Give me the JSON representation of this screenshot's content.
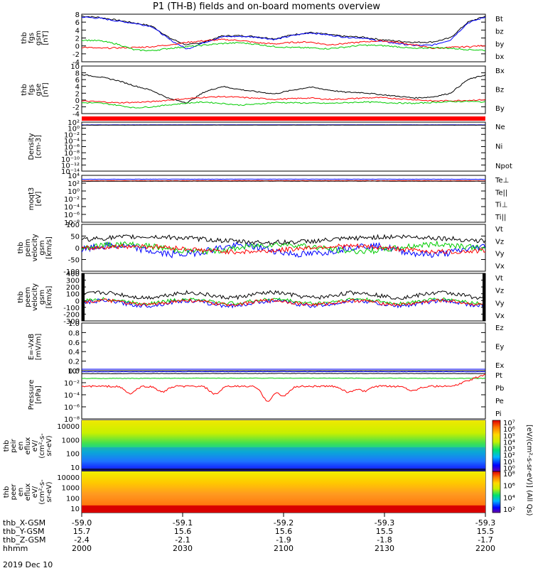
{
  "title": "P1 (TH-B) fields and on-board moments overview",
  "date_label": "2019 Dec 10",
  "colors": {
    "black": "#000000",
    "red": "#ff0000",
    "green": "#00cc00",
    "blue": "#0000ff"
  },
  "chart_data": [
    {
      "type": "line",
      "panel": "fgs_gsm",
      "ylabel_lines": [
        "thb",
        "fgs",
        "gsm",
        "[nT]"
      ],
      "yticks": [
        "8",
        "6",
        "4",
        "2",
        "0",
        "-2",
        "-4"
      ],
      "ylim": [
        -4,
        8
      ],
      "legend": [
        "Bt",
        "bz",
        "by",
        "bx"
      ],
      "series": [
        {
          "color": "black",
          "values": [
            7.5,
            7.2,
            6.5,
            5.8,
            5.0,
            2.0,
            0.2,
            1.0,
            2.5,
            2.6,
            2.3,
            1.8,
            2.8,
            3.4,
            2.9,
            2.4,
            2.2,
            1.6,
            1.2,
            0.9,
            1.0,
            2.0,
            6.0,
            7.5
          ]
        },
        {
          "color": "blue",
          "values": [
            7.3,
            7.0,
            6.3,
            5.7,
            4.9,
            1.6,
            -0.8,
            0.9,
            2.3,
            2.4,
            2.2,
            1.6,
            2.6,
            3.3,
            2.8,
            2.2,
            2.0,
            1.2,
            0.6,
            0.1,
            0.2,
            1.5,
            5.8,
            7.3
          ]
        },
        {
          "color": "red",
          "values": [
            -0.3,
            -0.6,
            -0.5,
            -0.4,
            -0.2,
            0.3,
            0.9,
            1.3,
            1.6,
            1.4,
            0.8,
            0.5,
            0.9,
            1.0,
            0.3,
            0.6,
            1.0,
            1.3,
            0.9,
            0.2,
            -0.6,
            -0.4,
            -0.2,
            0.1
          ]
        },
        {
          "color": "green",
          "values": [
            1.5,
            1.3,
            0.5,
            -1.0,
            -1.2,
            -0.6,
            -0.2,
            0.2,
            0.6,
            0.8,
            0.4,
            -0.2,
            -0.4,
            -0.5,
            -0.7,
            -0.3,
            0.2,
            0.1,
            -0.2,
            -0.7,
            -0.4,
            -0.6,
            -0.9,
            -1.1
          ]
        }
      ]
    },
    {
      "type": "line",
      "panel": "fgs_gse",
      "ylabel_lines": [
        "thb",
        "fgs",
        "gse",
        "[nT]"
      ],
      "yticks": [
        "10",
        "8",
        "6",
        "4",
        "2",
        "0",
        "-2",
        "-4"
      ],
      "ylim": [
        -4,
        10
      ],
      "legend": [
        "Bx",
        "Bz",
        "By"
      ],
      "series": [
        {
          "color": "black",
          "values": [
            7.5,
            6.8,
            5.8,
            4.2,
            2.8,
            0.4,
            -0.8,
            2.4,
            4.0,
            3.1,
            2.4,
            1.8,
            2.9,
            3.8,
            3.0,
            2.3,
            2.2,
            1.6,
            1.1,
            0.6,
            0.9,
            2.0,
            6.0,
            7.4
          ]
        },
        {
          "color": "red",
          "values": [
            -0.3,
            -0.5,
            -0.8,
            -0.7,
            -0.5,
            0.0,
            0.4,
            0.8,
            1.0,
            0.8,
            0.5,
            0.2,
            0.4,
            0.6,
            0.2,
            0.3,
            0.6,
            0.7,
            0.4,
            0.1,
            -0.3,
            -0.2,
            -0.1,
            0.1
          ]
        },
        {
          "color": "green",
          "values": [
            -0.8,
            -0.9,
            -1.5,
            -2.3,
            -2.0,
            -1.4,
            -0.9,
            -0.6,
            -1.0,
            -1.5,
            -1.2,
            -0.7,
            -0.8,
            -0.9,
            -1.0,
            -0.8,
            -0.6,
            -0.7,
            -0.9,
            -1.0,
            -0.7,
            -0.5,
            -0.4,
            -0.6
          ]
        }
      ]
    },
    {
      "type": "line",
      "panel": "density",
      "yscale": "log",
      "ylabel_lines": [
        "Density",
        "[cm-3]"
      ],
      "yticks": [
        "10²",
        "10⁰",
        "10⁻²",
        "10⁻⁴",
        "10⁻⁶",
        "10⁻⁸",
        "10⁻¹⁰",
        "10⁻¹²",
        "10⁻¹⁴"
      ],
      "ylim": [
        -14,
        2
      ],
      "legend": [
        "Ne",
        "Ni",
        "Npot"
      ]
    },
    {
      "type": "line",
      "panel": "temperature",
      "yscale": "log",
      "ylabel_lines": [
        "moqt3",
        "[eV]"
      ],
      "yticks": [
        "10⁴",
        "10²",
        "10⁰",
        "10⁻²",
        "10⁻⁴",
        "10⁻⁶",
        "10⁻⁸"
      ],
      "ylim": [
        -8,
        4
      ],
      "legend": [
        "Te⊥",
        "Te||",
        "Ti⊥",
        "Ti||"
      ]
    },
    {
      "type": "line",
      "panel": "peim_velocity",
      "ylabel_lines": [
        "thb",
        "peim",
        "velocity",
        "gsm",
        "[km/s]"
      ],
      "yticks": [
        "100",
        "50",
        "0",
        "-50",
        "-100"
      ],
      "ylim": [
        -100,
        100
      ],
      "legend": [
        "Vt",
        "Vz",
        "Vy",
        "Vx"
      ]
    },
    {
      "type": "line",
      "panel": "peem_velocity",
      "ylabel_lines": [
        "thb",
        "peem",
        "velocity",
        "gsm",
        "[km/s]"
      ],
      "yticks": [
        "400",
        "300",
        "200",
        "100",
        "0",
        "-100",
        "-200",
        "-300"
      ],
      "ylim": [
        -300,
        400
      ],
      "legend": [
        "Vt",
        "Vz",
        "Vy",
        "Vx"
      ]
    },
    {
      "type": "line",
      "panel": "e_field",
      "ylabel_lines": [
        "E=-VxB",
        "[mV/m]"
      ],
      "yticks": [
        "1.0",
        "0.8",
        "0.6",
        "0.4",
        "0.2",
        "0.0"
      ],
      "ylim": [
        0,
        1
      ],
      "legend": [
        "Ez",
        "Ey",
        "Ex"
      ]
    },
    {
      "type": "line",
      "panel": "pressure",
      "yscale": "log",
      "ylabel_lines": [
        "Pressure",
        "[nPa]"
      ],
      "yticks": [
        "10⁰",
        "10⁻²",
        "10⁻⁴",
        "10⁻⁶",
        "10⁻⁸"
      ],
      "ylim": [
        -8,
        0
      ],
      "legend": [
        "Pt",
        "Pb",
        "Pe",
        "Pi"
      ]
    },
    {
      "type": "heatmap",
      "panel": "peir_spectrogram",
      "ylabel_lines": [
        "thb",
        "peir",
        "en",
        "eflux",
        "eV/",
        "(cm²-s-",
        "sr-eV)"
      ],
      "yticks": [
        "10000",
        "1000",
        "100",
        "10"
      ]
    },
    {
      "type": "heatmap",
      "panel": "peer_spectrogram",
      "ylabel_lines": [
        "thb",
        "peer",
        "en",
        "eflux",
        "eV/",
        "(cm²-s-",
        "sr-eV)"
      ],
      "yticks": [
        "10000",
        "1000",
        "100",
        "10"
      ]
    }
  ],
  "colorbar_top": {
    "ticks": [
      "10⁷",
      "10⁶",
      "10⁵",
      "10⁴",
      "10³",
      "10²",
      "10¹",
      "10⁰"
    ]
  },
  "colorbar_bottom": {
    "ticks": [
      "10⁸",
      "10⁶",
      "10⁴",
      "10²"
    ]
  },
  "colorbar_label": "[eV/(cm²-s-sr-eV)] (All Qs)",
  "x_axis": {
    "row_labels": [
      "thb_X-GSM",
      "thb_Y-GSM",
      "thb_Z-GSM",
      "hhmm"
    ],
    "columns": [
      [
        "-59.0",
        "15.7",
        "-2.4",
        "2000"
      ],
      [
        "-59.1",
        "15.6",
        "-2.1",
        "2030"
      ],
      [
        "-59.2",
        "15.6",
        "-1.9",
        "2100"
      ],
      [
        "-59.3",
        "15.5",
        "-1.8",
        "2130"
      ],
      [
        "-59.3",
        "15.5",
        "-1.7",
        "2200"
      ]
    ]
  }
}
